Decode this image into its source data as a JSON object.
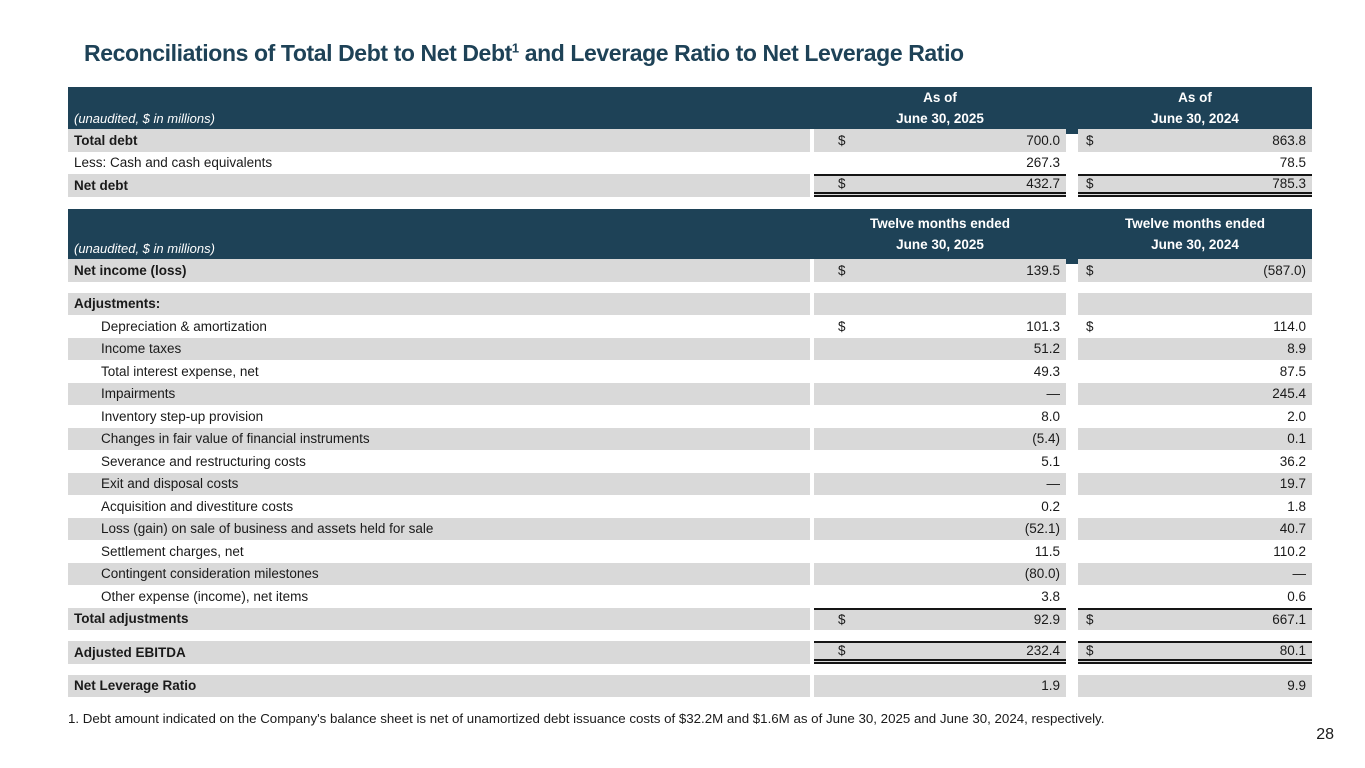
{
  "slide": {
    "title": {
      "prefix": "Reconciliations of Total Debt to Net Debt",
      "superscript": "1",
      "suffix": " and Leverage Ratio to Net Leverage Ratio"
    },
    "footnote": "1. Debt amount indicated on the Company's balance sheet is net of unamortized debt issuance costs of $32.2M and $1.6M as of June 30, 2025 and June 30, 2024, respectively.",
    "page_number": "28"
  },
  "colors": {
    "navy": "#1e4257",
    "row_shade": "#d9d9d9",
    "border": "#151515",
    "text": "#1a1a1a"
  },
  "debt_table": {
    "unaudited_label": "(unaudited, $ in millions)",
    "columns": [
      {
        "line1": "As of",
        "line2": "June 30, 2025"
      },
      {
        "line1": "As of",
        "line2": "June 30, 2024"
      }
    ],
    "rows": [
      {
        "label": "Total debt",
        "bold": true,
        "shaded": true,
        "d1": "$",
        "v1": "700.0",
        "d2": "$",
        "v2": "863.8"
      },
      {
        "label": "Less: Cash and cash equivalents",
        "v1": "267.3",
        "v2": "78.5"
      },
      {
        "label": "Net debt",
        "bold": true,
        "shaded": true,
        "d1": "$",
        "v1": "432.7",
        "d2": "$",
        "v2": "785.3",
        "borderTop": true,
        "doubleBottom": true
      }
    ]
  },
  "ebitda_table": {
    "unaudited_label": "(unaudited, $ in millions)",
    "columns": [
      {
        "line1": "Twelve months ended",
        "line2": "June 30, 2025"
      },
      {
        "line1": "Twelve months ended",
        "line2": "June 30, 2024"
      }
    ],
    "rows": [
      {
        "label": "Net income (loss)",
        "bold": true,
        "shaded": true,
        "d1": "$",
        "v1": "139.5",
        "d2": "$",
        "v2": "(587.0)"
      },
      {
        "spacer": true
      },
      {
        "label": "Adjustments:",
        "bold": true,
        "shaded": true
      },
      {
        "label": "Depreciation & amortization",
        "indent": true,
        "d1": "$",
        "v1": "101.3",
        "d2": "$",
        "v2": "114.0"
      },
      {
        "label": "Income taxes",
        "indent": true,
        "shaded": true,
        "v1": "51.2",
        "v2": "8.9"
      },
      {
        "label": "Total interest expense, net",
        "indent": true,
        "v1": "49.3",
        "v2": "87.5"
      },
      {
        "label": "Impairments",
        "indent": true,
        "shaded": true,
        "v1": "—",
        "v2": "245.4"
      },
      {
        "label": "Inventory step-up provision",
        "indent": true,
        "v1": "8.0",
        "v2": "2.0"
      },
      {
        "label": "Changes in fair value of financial instruments",
        "indent": true,
        "shaded": true,
        "v1": "(5.4)",
        "v2": "0.1"
      },
      {
        "label": "Severance and restructuring costs",
        "indent": true,
        "v1": "5.1",
        "v2": "36.2"
      },
      {
        "label": "Exit and disposal costs",
        "indent": true,
        "shaded": true,
        "v1": "—",
        "v2": "19.7"
      },
      {
        "label": "Acquisition and divestiture costs",
        "indent": true,
        "v1": "0.2",
        "v2": "1.8"
      },
      {
        "label": "Loss (gain) on sale of business and assets held for sale",
        "indent": true,
        "shaded": true,
        "v1": "(52.1)",
        "v2": "40.7"
      },
      {
        "label": "Settlement charges, net",
        "indent": true,
        "v1": "11.5",
        "v2": "110.2"
      },
      {
        "label": "Contingent consideration milestones",
        "indent": true,
        "shaded": true,
        "v1": "(80.0)",
        "v2": "—"
      },
      {
        "label": "Other expense (income), net items",
        "indent": true,
        "v1": "3.8",
        "v2": "0.6"
      },
      {
        "label": "Total adjustments",
        "bold": true,
        "shaded": true,
        "d1": "$",
        "v1": "92.9",
        "d2": "$",
        "v2": "667.1",
        "borderTop": true
      },
      {
        "spacer": true
      },
      {
        "label": "Adjusted EBITDA",
        "bold": true,
        "shaded": true,
        "d1": "$",
        "v1": "232.4",
        "d2": "$",
        "v2": "80.1",
        "borderTop": true,
        "doubleBottom": true
      },
      {
        "spacer": true
      },
      {
        "label": "Net Leverage Ratio",
        "bold": true,
        "shaded": true,
        "v1": "1.9",
        "v2": "9.9"
      }
    ]
  }
}
